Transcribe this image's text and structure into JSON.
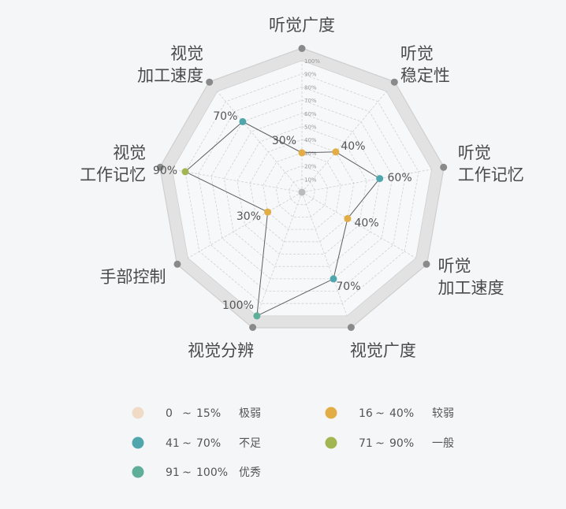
{
  "chart_data": {
    "type": "radar",
    "title": "",
    "axes": [
      {
        "label": [
          "听觉广度"
        ],
        "value": 30
      },
      {
        "label": [
          "听觉",
          "稳定性"
        ],
        "value": 40
      },
      {
        "label": [
          "听觉",
          "工作记忆"
        ],
        "value": 60
      },
      {
        "label": [
          "听觉",
          "加工速度"
        ],
        "value": 40
      },
      {
        "label": [
          "视觉广度"
        ],
        "value": 70
      },
      {
        "label": [
          "视觉分辨"
        ],
        "value": 100
      },
      {
        "label": [
          "手部控制"
        ],
        "value": 30
      },
      {
        "label": [
          "视觉",
          "工作记忆"
        ],
        "value": 90
      },
      {
        "label": [
          "视觉",
          "加工速度"
        ],
        "value": 70
      }
    ],
    "value_labels": [
      "30%",
      "40%",
      "60%",
      "40%",
      "70%",
      "100%",
      "30%",
      "90%",
      "70%"
    ],
    "rlim": [
      0,
      100
    ],
    "ticks": [
      "10%",
      "20%",
      "30%",
      "40%",
      "50%",
      "60%",
      "70%",
      "80%",
      "90%",
      "100%"
    ],
    "grid": true,
    "legend": {
      "placement": "bottom",
      "items": [
        {
          "from": "0",
          "to": "15%",
          "name": "极弱",
          "color": "#f0dcc6"
        },
        {
          "from": "16",
          "to": "40%",
          "name": "较弱",
          "color": "#e3ad46"
        },
        {
          "from": "41",
          "to": "70%",
          "name": "不足",
          "color": "#4fa7ad"
        },
        {
          "from": "71",
          "to": "90%",
          "name": "一般",
          "color": "#a2b553"
        },
        {
          "from": "91",
          "to": "100%",
          "name": "优秀",
          "color": "#5fae9a"
        }
      ],
      "separator": "~"
    },
    "colors": {
      "band": "#e2e2e2",
      "band_border": "#cfcfcf",
      "grid": "#d0d0d0",
      "line": "#5f5f5f",
      "axis_dot": "#8a8a8a",
      "center_dot": "#bbbbbb"
    }
  }
}
